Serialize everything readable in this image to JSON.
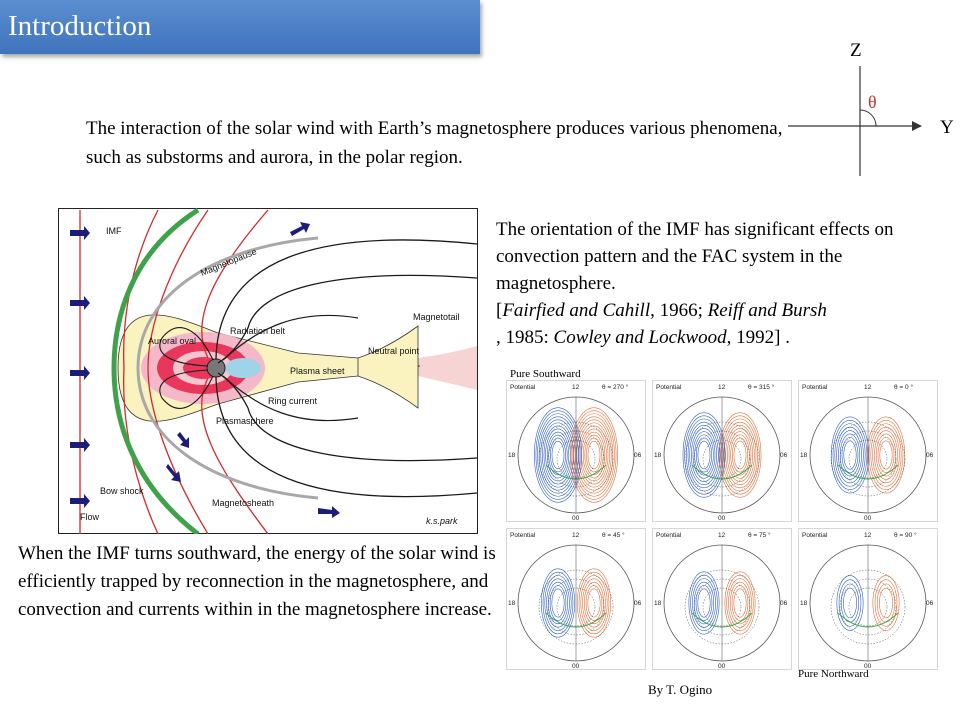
{
  "header": {
    "title": "Introduction"
  },
  "intro": {
    "text": "The interaction of the solar wind with Earth’s magnetosphere produces various phenomena, such as substorms and aurora, in the polar region."
  },
  "axes": {
    "z_label": "Z",
    "y_label": "Y",
    "theta_label": "θ"
  },
  "imf_paragraph": {
    "text": "The orientation of the IMF has significant effects on convection pattern and the FAC system in the magnetosphere.",
    "refs_open": "[",
    "ref1_authors": "Fairfied and Cahill",
    "ref1_year": ", 1966; ",
    "ref2_authors": "Reiff and Bursh",
    "ref2_year": ", 1985: ",
    "ref3_authors": "Cowley and Lockwood",
    "ref3_year": ", 1992] ."
  },
  "southward_paragraph": {
    "text": "When the IMF turns southward, the energy of the solar wind is efficiently trapped by reconnection in the magnetosphere, and convection and currents within in the magnetosphere increase."
  },
  "magnetosphere_figure": {
    "labels": {
      "imf": "IMF",
      "magnetopause": "Magnetopause",
      "magnetotail": "Magnetotail",
      "radiation_belt": "Radiation belt",
      "auroral_oval": "Auroral oval",
      "neutral_point": "Neutral point",
      "plasma_sheet": "Plasma sheet",
      "ring_current": "Ring current",
      "plasmasphere": "Plasmasphere",
      "bow_shock": "Bow shock",
      "magnetosheath": "Magnetosheath",
      "flow": "Flow",
      "signature": "k.s.park"
    },
    "colors": {
      "bow_shock": "#3fa24a",
      "field_lines": "#1a1a1a",
      "imf_lines": "#d42a2a",
      "plasma_sheet": "#fbf3bf",
      "arrows": "#1c1c7a"
    }
  },
  "convection_panels": {
    "caption_southward": "Pure Southward",
    "caption_northward": "Pure Northward",
    "credit": "By T. Ogino",
    "potential_label": "Potential",
    "mlt_top": "12",
    "mlt_bottom": "00",
    "mlt_left": "18",
    "mlt_right": "06",
    "panels": [
      {
        "theta": "θ = 270 °"
      },
      {
        "theta": "θ = 315 °"
      },
      {
        "theta": "θ =   0 °"
      },
      {
        "theta": "θ =  45 °"
      },
      {
        "theta": "θ =  75 °"
      },
      {
        "theta": "θ =  90 °"
      }
    ],
    "colors": {
      "negative": "#2f5fc4",
      "positive": "#e0703a",
      "fac": "#3aa548"
    }
  }
}
